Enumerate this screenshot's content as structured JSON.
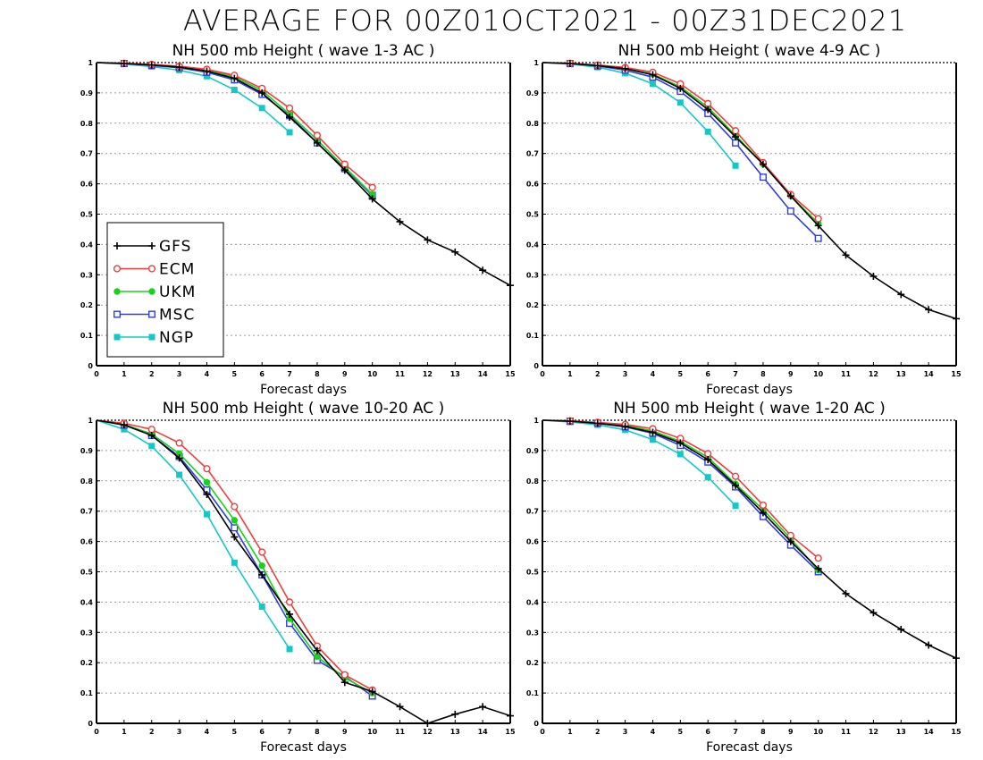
{
  "page_title": "AVERAGE FOR 00Z01OCT2021 - 00Z31DEC2021",
  "colors": {
    "GFS": "#000000",
    "ECM": "#ef3c3c",
    "UKM": "#19d219",
    "MSC": "#2d3ce6",
    "NGP": "#14c8c8",
    "grid": "#9a9a9a"
  },
  "legend": {
    "placement": "lower-left of first panel",
    "entries": [
      {
        "name": "GFS",
        "marker": "plus"
      },
      {
        "name": "ECM",
        "marker": "open-circle"
      },
      {
        "name": "UKM",
        "marker": "filled-circle"
      },
      {
        "name": "MSC",
        "marker": "open-square"
      },
      {
        "name": "NGP",
        "marker": "filled-square"
      }
    ]
  },
  "chart_data": [
    {
      "type": "line",
      "title": "NH 500 mb Height ( wave 1-3 AC )",
      "xlabel": "Forecast days",
      "ylabel": "",
      "xlim": [
        0,
        15
      ],
      "ylim": [
        0,
        1
      ],
      "x_ticks": [
        "0",
        "1",
        "2",
        "3",
        "4",
        "5",
        "6",
        "7",
        "8",
        "9",
        "10",
        "11",
        "12",
        "13",
        "14",
        "15"
      ],
      "y_ticks": [
        "0",
        "0.1",
        "0.2",
        "0.3",
        "0.4",
        "0.5",
        "0.6",
        "0.7",
        "0.8",
        "0.9",
        "1"
      ],
      "grid": "horizontal dotted",
      "series": [
        {
          "name": "GFS",
          "x": [
            0,
            1,
            2,
            3,
            4,
            5,
            6,
            7,
            8,
            9,
            10,
            11,
            12,
            13,
            14,
            15
          ],
          "y": [
            1,
            0.997,
            0.992,
            0.985,
            0.972,
            0.948,
            0.9,
            0.82,
            0.735,
            0.645,
            0.55,
            0.475,
            0.415,
            0.375,
            0.315,
            0.265
          ]
        },
        {
          "name": "ECM",
          "x": [
            0,
            1,
            2,
            3,
            4,
            5,
            6,
            7,
            8,
            9,
            10
          ],
          "y": [
            1,
            0.998,
            0.994,
            0.988,
            0.978,
            0.958,
            0.915,
            0.85,
            0.76,
            0.665,
            0.588
          ]
        },
        {
          "name": "UKM",
          "x": [
            0,
            1,
            2,
            3,
            4,
            5,
            6,
            7,
            8,
            9,
            10
          ],
          "y": [
            1,
            0.998,
            0.993,
            0.986,
            0.975,
            0.953,
            0.908,
            0.83,
            0.745,
            0.655,
            0.565
          ]
        },
        {
          "name": "MSC",
          "x": [
            0,
            1,
            2,
            3,
            4,
            5,
            6,
            7,
            8,
            9,
            10
          ],
          "y": [
            1,
            0.997,
            0.991,
            0.983,
            0.968,
            0.943,
            0.895,
            0.825,
            0.735,
            0.65,
            0.562
          ]
        },
        {
          "name": "NGP",
          "x": [
            0,
            1,
            2,
            3,
            4,
            5,
            6,
            7
          ],
          "y": [
            1,
            0.995,
            0.987,
            0.975,
            0.955,
            0.91,
            0.85,
            0.77
          ]
        }
      ]
    },
    {
      "type": "line",
      "title": "NH 500 mb Height ( wave 4-9 AC )",
      "xlabel": "Forecast days",
      "ylabel": "",
      "xlim": [
        0,
        15
      ],
      "ylim": [
        0,
        1
      ],
      "x_ticks": [
        "0",
        "1",
        "2",
        "3",
        "4",
        "5",
        "6",
        "7",
        "8",
        "9",
        "10",
        "11",
        "12",
        "13",
        "14",
        "15"
      ],
      "y_ticks": [
        "0",
        "0.1",
        "0.2",
        "0.3",
        "0.4",
        "0.5",
        "0.6",
        "0.7",
        "0.8",
        "0.9",
        "1"
      ],
      "grid": "horizontal dotted",
      "series": [
        {
          "name": "GFS",
          "x": [
            0,
            1,
            2,
            3,
            4,
            5,
            6,
            7,
            8,
            9,
            10,
            11,
            12,
            13,
            14,
            15
          ],
          "y": [
            1,
            0.997,
            0.99,
            0.98,
            0.96,
            0.915,
            0.845,
            0.755,
            0.665,
            0.56,
            0.462,
            0.365,
            0.295,
            0.235,
            0.185,
            0.155
          ]
        },
        {
          "name": "ECM",
          "x": [
            0,
            1,
            2,
            3,
            4,
            5,
            6,
            7,
            8,
            9,
            10
          ],
          "y": [
            1,
            0.998,
            0.992,
            0.984,
            0.968,
            0.93,
            0.865,
            0.775,
            0.67,
            0.565,
            0.485
          ]
        },
        {
          "name": "UKM",
          "x": [
            0,
            1,
            2,
            3,
            4,
            5,
            6,
            7,
            8,
            9,
            10
          ],
          "y": [
            1,
            0.998,
            0.991,
            0.981,
            0.962,
            0.92,
            0.853,
            0.76,
            0.665,
            0.56,
            0.47
          ]
        },
        {
          "name": "MSC",
          "x": [
            0,
            1,
            2,
            3,
            4,
            5,
            6,
            7,
            8,
            9,
            10
          ],
          "y": [
            1,
            0.997,
            0.989,
            0.975,
            0.952,
            0.905,
            0.832,
            0.735,
            0.622,
            0.51,
            0.42
          ]
        },
        {
          "name": "NGP",
          "x": [
            0,
            1,
            2,
            3,
            4,
            5,
            6,
            7
          ],
          "y": [
            1,
            0.995,
            0.985,
            0.965,
            0.93,
            0.868,
            0.772,
            0.66
          ]
        }
      ]
    },
    {
      "type": "line",
      "title": "NH 500 mb Height ( wave 10-20 AC )",
      "xlabel": "Forecast days",
      "ylabel": "",
      "xlim": [
        0,
        15
      ],
      "ylim": [
        0,
        1
      ],
      "x_ticks": [
        "0",
        "1",
        "2",
        "3",
        "4",
        "5",
        "6",
        "7",
        "8",
        "9",
        "10",
        "11",
        "12",
        "13",
        "14",
        "15"
      ],
      "y_ticks": [
        "0",
        "0.1",
        "0.2",
        "0.3",
        "0.4",
        "0.5",
        "0.6",
        "0.7",
        "0.8",
        "0.9",
        "1"
      ],
      "grid": "horizontal dotted",
      "series": [
        {
          "name": "GFS",
          "x": [
            0,
            1,
            2,
            3,
            4,
            5,
            6,
            7,
            8,
            9,
            10,
            11,
            12,
            13,
            14,
            15
          ],
          "y": [
            1,
            0.985,
            0.95,
            0.875,
            0.755,
            0.615,
            0.49,
            0.36,
            0.24,
            0.135,
            0.105,
            0.055,
            0.0,
            0.03,
            0.055,
            0.025
          ]
        },
        {
          "name": "ECM",
          "x": [
            0,
            1,
            2,
            3,
            4,
            5,
            6,
            7,
            8,
            9,
            10
          ],
          "y": [
            1,
            0.99,
            0.97,
            0.925,
            0.84,
            0.715,
            0.565,
            0.4,
            0.255,
            0.16,
            0.11
          ]
        },
        {
          "name": "UKM",
          "x": [
            0,
            1,
            2,
            3,
            4,
            5,
            6,
            7,
            8,
            9,
            10
          ],
          "y": [
            1,
            0.986,
            0.955,
            0.89,
            0.795,
            0.67,
            0.52,
            0.345,
            0.22,
            0.15,
            0.1
          ]
        },
        {
          "name": "MSC",
          "x": [
            0,
            1,
            2,
            3,
            4,
            5,
            6,
            7,
            8,
            9,
            10
          ],
          "y": [
            1,
            0.984,
            0.95,
            0.88,
            0.77,
            0.645,
            0.49,
            0.33,
            0.208,
            0.155,
            0.09
          ]
        },
        {
          "name": "NGP",
          "x": [
            0,
            1,
            2,
            3,
            4,
            5,
            6,
            7
          ],
          "y": [
            1,
            0.97,
            0.915,
            0.82,
            0.69,
            0.53,
            0.385,
            0.245
          ]
        }
      ]
    },
    {
      "type": "line",
      "title": "NH 500 mb Height ( wave 1-20 AC )",
      "xlabel": "Forecast days",
      "ylabel": "",
      "xlim": [
        0,
        15
      ],
      "ylim": [
        0,
        1
      ],
      "x_ticks": [
        "0",
        "1",
        "2",
        "3",
        "4",
        "5",
        "6",
        "7",
        "8",
        "9",
        "10",
        "11",
        "12",
        "13",
        "14",
        "15"
      ],
      "y_ticks": [
        "0",
        "0.1",
        "0.2",
        "0.3",
        "0.4",
        "0.5",
        "0.6",
        "0.7",
        "0.8",
        "0.9",
        "1"
      ],
      "grid": "horizontal dotted",
      "series": [
        {
          "name": "GFS",
          "x": [
            0,
            1,
            2,
            3,
            4,
            5,
            6,
            7,
            8,
            9,
            10,
            11,
            12,
            13,
            14,
            15
          ],
          "y": [
            1,
            0.997,
            0.99,
            0.98,
            0.96,
            0.925,
            0.87,
            0.785,
            0.695,
            0.6,
            0.51,
            0.428,
            0.365,
            0.31,
            0.258,
            0.215
          ]
        },
        {
          "name": "ECM",
          "x": [
            0,
            1,
            2,
            3,
            4,
            5,
            6,
            7,
            8,
            9,
            10
          ],
          "y": [
            1,
            0.998,
            0.993,
            0.986,
            0.972,
            0.94,
            0.89,
            0.815,
            0.72,
            0.62,
            0.545
          ]
        },
        {
          "name": "UKM",
          "x": [
            0,
            1,
            2,
            3,
            4,
            5,
            6,
            7,
            8,
            9,
            10
          ],
          "y": [
            1,
            0.998,
            0.992,
            0.983,
            0.965,
            0.93,
            0.878,
            0.79,
            0.705,
            0.61,
            0.505
          ]
        },
        {
          "name": "MSC",
          "x": [
            0,
            1,
            2,
            3,
            4,
            5,
            6,
            7,
            8,
            9,
            10
          ],
          "y": [
            1,
            0.997,
            0.99,
            0.978,
            0.957,
            0.917,
            0.862,
            0.78,
            0.682,
            0.588,
            0.5
          ]
        },
        {
          "name": "NGP",
          "x": [
            0,
            1,
            2,
            3,
            4,
            5,
            6,
            7
          ],
          "y": [
            1,
            0.994,
            0.985,
            0.968,
            0.936,
            0.888,
            0.812,
            0.718
          ]
        }
      ]
    }
  ]
}
